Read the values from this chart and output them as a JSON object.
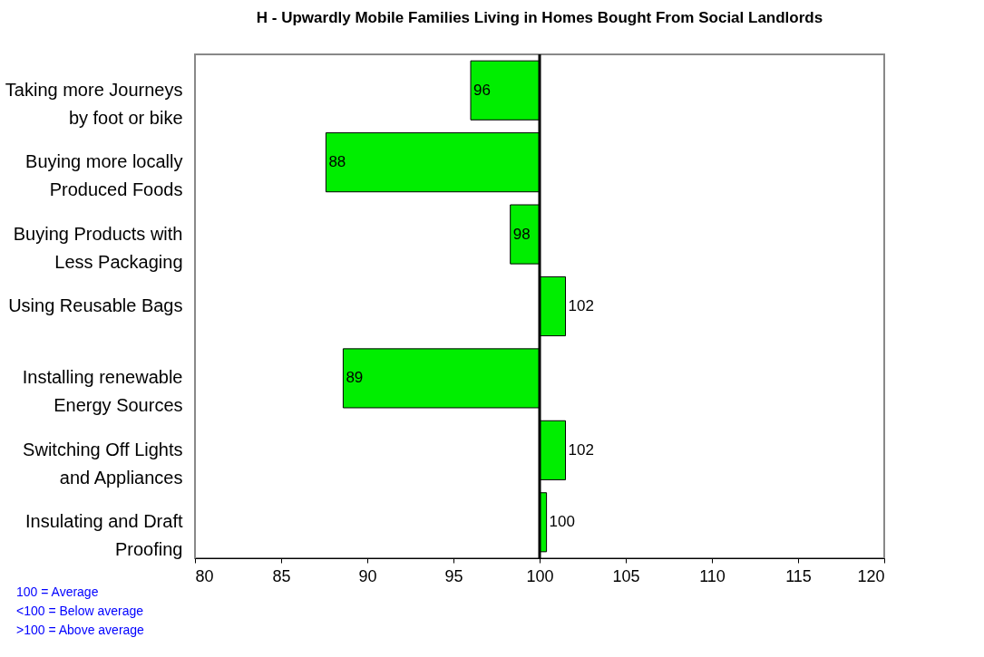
{
  "chart_data": {
    "type": "bar",
    "orientation": "horizontal",
    "title": "H - Upwardly Mobile Families Living in Homes Bought From Social Landlords",
    "categories": [
      "Taking more Journeys by foot or bike",
      "Buying more locally Produced Foods",
      "Buying Products with Less Packaging",
      "Using Reusable Bags",
      "Installing renewable Energy Sources",
      "Switching Off Lights and Appliances",
      "Insulating and Draft Proofing"
    ],
    "base": [
      100,
      100,
      100,
      100,
      100,
      100,
      100
    ],
    "values": [
      -4,
      -12.4,
      -1.7,
      1.5,
      -11.4,
      1.5,
      0.4
    ],
    "value_labels": [
      "96",
      "88",
      "98",
      "102",
      "89",
      "102",
      "100"
    ],
    "color": "#00ee00",
    "xlim": [
      80,
      120
    ],
    "xticks": [
      80,
      85,
      90,
      95,
      100,
      105,
      110,
      115,
      120
    ],
    "ref_lines": [
      {
        "axis": "x",
        "value": 100
      }
    ],
    "grid": false,
    "annotations": [
      "100 = Average",
      "<100 = Below average",
      ">100 = Above average"
    ]
  }
}
